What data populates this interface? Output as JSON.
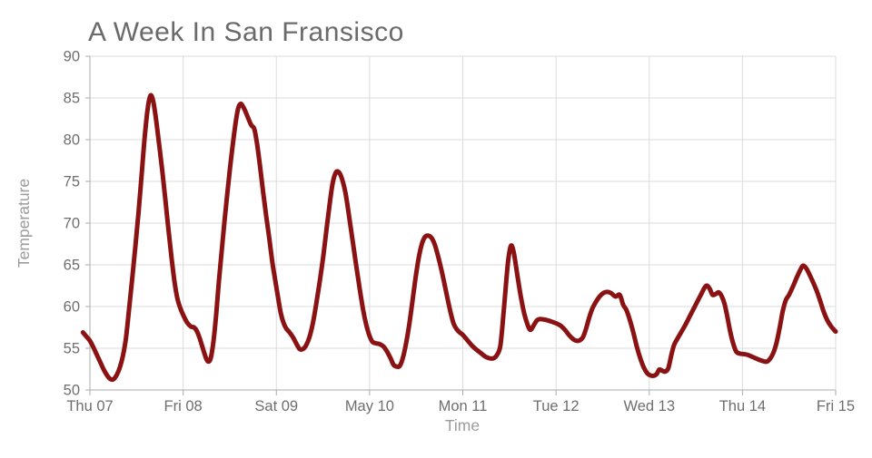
{
  "chart_data": {
    "type": "line",
    "title": "A Week In San Fransisco",
    "xlabel": "Time",
    "ylabel": "Temperature",
    "x_tick_labels": [
      "Thu 07",
      "Fri 08",
      "Sat 09",
      "May 10",
      "Mon 11",
      "Tue 12",
      "Wed 13",
      "Thu 14",
      "Fri 15"
    ],
    "x_range_hours": [
      0,
      192
    ],
    "hours_per_tick": 24,
    "y_ticks": [
      50,
      55,
      60,
      65,
      70,
      75,
      80,
      85,
      90
    ],
    "ylim": [
      50,
      90
    ],
    "grid": true,
    "legend_position": "none",
    "series": [
      {
        "name": "Temperature",
        "color": "#8B1212",
        "points": [
          [
            -1.8,
            56.9
          ],
          [
            -0.9,
            56.4
          ],
          [
            0,
            55.9
          ],
          [
            0.9,
            55.1
          ],
          [
            1.8,
            54.2
          ],
          [
            2.7,
            53.3
          ],
          [
            3.6,
            52.4
          ],
          [
            4.5,
            51.7
          ],
          [
            5.3,
            51.3
          ],
          [
            6.1,
            51.3
          ],
          [
            6.9,
            51.8
          ],
          [
            7.7,
            52.7
          ],
          [
            8.5,
            54.1
          ],
          [
            9.3,
            56.3
          ],
          [
            10.1,
            59.8
          ],
          [
            10.9,
            63.4
          ],
          [
            11.7,
            67.2
          ],
          [
            12.5,
            71.2
          ],
          [
            13.3,
            75.7
          ],
          [
            14.1,
            80.3
          ],
          [
            14.9,
            83.8
          ],
          [
            15.6,
            85.3
          ],
          [
            16.3,
            84.6
          ],
          [
            17,
            82.5
          ],
          [
            17.8,
            79.5
          ],
          [
            18.6,
            76.4
          ],
          [
            19.4,
            72.9
          ],
          [
            20.2,
            69.3
          ],
          [
            21,
            65.9
          ],
          [
            21.8,
            62.9
          ],
          [
            22.5,
            61.0
          ],
          [
            23.2,
            59.9
          ],
          [
            24,
            59.0
          ],
          [
            25,
            58.1
          ],
          [
            26,
            57.6
          ],
          [
            26.8,
            57.5
          ],
          [
            27.6,
            57.0
          ],
          [
            28.4,
            56.0
          ],
          [
            29.2,
            54.8
          ],
          [
            29.9,
            53.8
          ],
          [
            30.5,
            53.4
          ],
          [
            31.1,
            53.8
          ],
          [
            31.8,
            55.8
          ],
          [
            32.5,
            59.0
          ],
          [
            33.2,
            63.0
          ],
          [
            33.9,
            66.5
          ],
          [
            34.6,
            70.0
          ],
          [
            35.3,
            73.2
          ],
          [
            36,
            76.3
          ],
          [
            36.8,
            79.5
          ],
          [
            37.6,
            82.3
          ],
          [
            38.2,
            83.8
          ],
          [
            38.8,
            84.3
          ],
          [
            39.5,
            83.9
          ],
          [
            40.2,
            83.2
          ],
          [
            40.9,
            82.4
          ],
          [
            41.6,
            81.7
          ],
          [
            42.3,
            81.3
          ],
          [
            43,
            79.6
          ],
          [
            43.8,
            76.8
          ],
          [
            44.6,
            73.7
          ],
          [
            45.4,
            70.8
          ],
          [
            46.2,
            68.1
          ],
          [
            47,
            65.2
          ],
          [
            47.8,
            62.9
          ],
          [
            48.4,
            61.2
          ],
          [
            49.1,
            59.3
          ],
          [
            49.8,
            58.1
          ],
          [
            50.5,
            57.4
          ],
          [
            51.4,
            56.9
          ],
          [
            52.3,
            56.3
          ],
          [
            53.1,
            55.6
          ],
          [
            54,
            54.9
          ],
          [
            54.8,
            54.9
          ],
          [
            55.6,
            55.3
          ],
          [
            56.5,
            56.3
          ],
          [
            57.4,
            58.0
          ],
          [
            58.3,
            60.4
          ],
          [
            59.2,
            63.1
          ],
          [
            60.1,
            66.1
          ],
          [
            60.9,
            69.2
          ],
          [
            61.7,
            72.2
          ],
          [
            62.5,
            74.8
          ],
          [
            63.3,
            76.05
          ],
          [
            64.1,
            76.1
          ],
          [
            64.9,
            75.3
          ],
          [
            65.8,
            73.6
          ],
          [
            66.7,
            70.9
          ],
          [
            67.6,
            68.0
          ],
          [
            68.5,
            65.1
          ],
          [
            69.4,
            62.3
          ],
          [
            70.3,
            59.7
          ],
          [
            71.1,
            57.9
          ],
          [
            71.9,
            56.6
          ],
          [
            72.7,
            55.8
          ],
          [
            73.6,
            55.6
          ],
          [
            74.6,
            55.5
          ],
          [
            75.6,
            55.2
          ],
          [
            76.5,
            54.6
          ],
          [
            77.4,
            53.8
          ],
          [
            78.2,
            53.0
          ],
          [
            79,
            52.8
          ],
          [
            79.8,
            52.9
          ],
          [
            80.6,
            53.9
          ],
          [
            81.4,
            55.6
          ],
          [
            82.2,
            57.8
          ],
          [
            83,
            60.5
          ],
          [
            83.8,
            63.3
          ],
          [
            84.6,
            65.7
          ],
          [
            85.4,
            67.4
          ],
          [
            86.2,
            68.3
          ],
          [
            87.1,
            68.5
          ],
          [
            88,
            68.2
          ],
          [
            88.8,
            67.4
          ],
          [
            89.6,
            66.1
          ],
          [
            90.4,
            64.6
          ],
          [
            91.2,
            62.9
          ],
          [
            92,
            61.1
          ],
          [
            92.8,
            59.4
          ],
          [
            93.6,
            58.0
          ],
          [
            94.4,
            57.3
          ],
          [
            95.2,
            56.9
          ],
          [
            96,
            56.6
          ],
          [
            97.3,
            55.9
          ],
          [
            98.4,
            55.3
          ],
          [
            99.6,
            54.8
          ],
          [
            100.7,
            54.4
          ],
          [
            101.8,
            54.0
          ],
          [
            102.9,
            53.8
          ],
          [
            103.9,
            53.8
          ],
          [
            104.8,
            54.2
          ],
          [
            105.7,
            55.4
          ],
          [
            106.6,
            59.8
          ],
          [
            107.5,
            64.7
          ],
          [
            108.1,
            66.8
          ],
          [
            108.6,
            67.3
          ],
          [
            109.2,
            66.3
          ],
          [
            110,
            63.9
          ],
          [
            110.9,
            61.3
          ],
          [
            111.8,
            59.2
          ],
          [
            112.7,
            57.8
          ],
          [
            113.4,
            57.2
          ],
          [
            114.2,
            57.7
          ],
          [
            115,
            58.3
          ],
          [
            115.8,
            58.5
          ],
          [
            116.8,
            58.45
          ],
          [
            117.8,
            58.35
          ],
          [
            118.8,
            58.2
          ],
          [
            119.4,
            58.1
          ],
          [
            120,
            58.0
          ],
          [
            121.2,
            57.7
          ],
          [
            122.3,
            57.2
          ],
          [
            123.5,
            56.5
          ],
          [
            124.7,
            56.0
          ],
          [
            125.8,
            55.9
          ],
          [
            126.9,
            56.3
          ],
          [
            127.7,
            57.3
          ],
          [
            128.5,
            58.6
          ],
          [
            129.3,
            59.7
          ],
          [
            130.2,
            60.5
          ],
          [
            131.2,
            61.2
          ],
          [
            132.3,
            61.65
          ],
          [
            133.3,
            61.75
          ],
          [
            134.2,
            61.6
          ],
          [
            135.3,
            61.2
          ],
          [
            136.4,
            61.4
          ],
          [
            137.3,
            60.2
          ],
          [
            138.1,
            59.6
          ],
          [
            139,
            58.4
          ],
          [
            139.9,
            56.9
          ],
          [
            140.8,
            55.2
          ],
          [
            141.7,
            53.8
          ],
          [
            142.6,
            52.7
          ],
          [
            143.5,
            52.0
          ],
          [
            144.3,
            51.75
          ],
          [
            145.1,
            51.7
          ],
          [
            145.9,
            51.9
          ],
          [
            146.6,
            52.45
          ],
          [
            147.4,
            52.3
          ],
          [
            148.1,
            52.2
          ],
          [
            148.9,
            52.6
          ],
          [
            149.7,
            54.2
          ],
          [
            150.4,
            55.4
          ],
          [
            151.2,
            56.1
          ],
          [
            152.2,
            56.9
          ],
          [
            153.3,
            57.8
          ],
          [
            154.4,
            58.8
          ],
          [
            155.5,
            59.8
          ],
          [
            156.5,
            60.7
          ],
          [
            157.5,
            61.6
          ],
          [
            158.3,
            62.3
          ],
          [
            158.9,
            62.5
          ],
          [
            159.6,
            62.1
          ],
          [
            160.3,
            61.4
          ],
          [
            161.1,
            61.5
          ],
          [
            161.9,
            61.7
          ],
          [
            162.7,
            61.2
          ],
          [
            163.4,
            60.3
          ],
          [
            164.1,
            58.8
          ],
          [
            164.8,
            57.1
          ],
          [
            165.6,
            55.6
          ],
          [
            166.4,
            54.6
          ],
          [
            167.4,
            54.35
          ],
          [
            168.4,
            54.3
          ],
          [
            169.4,
            54.2
          ],
          [
            170.4,
            54.0
          ],
          [
            171.4,
            53.8
          ],
          [
            172.4,
            53.6
          ],
          [
            173.4,
            53.45
          ],
          [
            174.3,
            53.4
          ],
          [
            175.2,
            53.8
          ],
          [
            176,
            54.5
          ],
          [
            176.8,
            55.7
          ],
          [
            177.6,
            57.5
          ],
          [
            178.4,
            59.5
          ],
          [
            179.2,
            60.8
          ],
          [
            180,
            61.4
          ],
          [
            181,
            62.4
          ],
          [
            182,
            63.5
          ],
          [
            182.9,
            64.4
          ],
          [
            183.6,
            64.9
          ],
          [
            184.4,
            64.6
          ],
          [
            185.3,
            63.8
          ],
          [
            186.2,
            62.9
          ],
          [
            187.1,
            61.9
          ],
          [
            188,
            60.7
          ],
          [
            188.9,
            59.4
          ],
          [
            189.8,
            58.4
          ],
          [
            190.7,
            57.7
          ],
          [
            191.4,
            57.3
          ],
          [
            192,
            57.0
          ]
        ]
      }
    ],
    "style": {
      "line_color": "#8B1212",
      "line_width": 5,
      "grid_color": "#DBDBDB",
      "axis_color": "#ABABAB",
      "title_color": "#6A6A6A",
      "tick_label_color": "#6E6E6E",
      "axis_title_color": "#9C9C9C",
      "background": "#FFFFFF"
    }
  }
}
